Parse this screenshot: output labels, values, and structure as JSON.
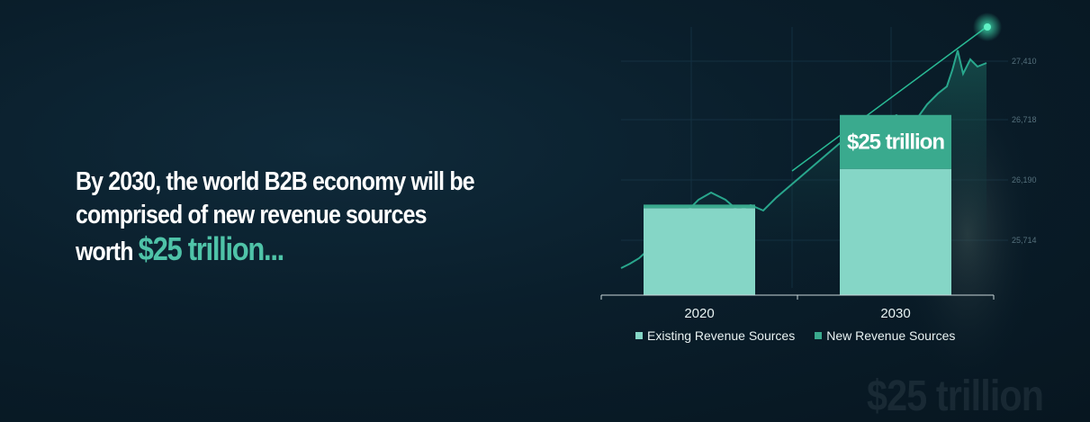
{
  "headline": {
    "line1": "By 2030, the world B2B economy will be",
    "line2": "comprised of new revenue sources",
    "line3_prefix": "worth",
    "accent": "$25 trillion..."
  },
  "watermark": "$25 trillion",
  "colors": {
    "existing": "#85d6c6",
    "new": "#3aaa8e",
    "accent_text": "#4fc3a8",
    "background": "#0a1e2b"
  },
  "chart_data": {
    "type": "bar",
    "stacked": true,
    "categories": [
      "2020",
      "2030"
    ],
    "series": [
      {
        "name": "Existing Revenue Sources",
        "values": [
          100,
          145
        ]
      },
      {
        "name": "New Revenue Sources",
        "values": [
          4,
          62
        ]
      }
    ],
    "annotation": "$25 trillion",
    "legend_position": "bottom",
    "ylim": [
      0,
      215
    ]
  },
  "background_chart": {
    "ticks": [
      "27,410",
      "26,718",
      "26,190",
      "25,714"
    ]
  }
}
